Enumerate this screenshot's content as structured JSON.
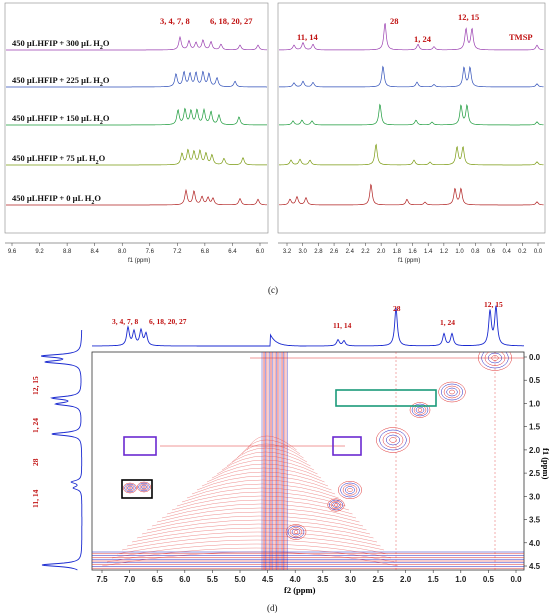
{
  "panel_c": {
    "caption": "(c)",
    "traces": [
      {
        "main": "450 μLHFIP + 300 μL H",
        "sub": "2",
        "tail": "O",
        "color": "#9a3fb0"
      },
      {
        "main": "450 μLHFIP + 225 μL H",
        "sub": "2",
        "tail": "O",
        "color": "#2f4fb8"
      },
      {
        "main": "450 μLHFIP + 150 μL H",
        "sub": "2",
        "tail": "O",
        "color": "#1a9a3a"
      },
      {
        "main": "450 μLHFIP + 75 μL H",
        "sub": "2",
        "tail": "O",
        "color": "#7a9a10"
      },
      {
        "main": "450 μLHFIP + 0 μL H",
        "sub": "2",
        "tail": "O",
        "color": "#b02020"
      }
    ],
    "peak_labels_left": [
      "3, 4, 7, 8",
      "6, 18, 20, 27"
    ],
    "peak_labels_right": [
      "11, 14",
      "28",
      "1, 24",
      "12, 15",
      "TMSP"
    ],
    "left_ticks": [
      "9.6",
      "9.2",
      "8.8",
      "8.4",
      "8.0",
      "7.6",
      "7.2",
      "6.8",
      "6.4",
      "6.0"
    ],
    "right_ticks": [
      "3.2",
      "3.0",
      "2.8",
      "2.6",
      "2.4",
      "2.2",
      "2.0",
      "1.8",
      "1.6",
      "1.4",
      "1.2",
      "1.0",
      "0.8",
      "0.6",
      "0.4",
      "0.2",
      "0.0"
    ],
    "xlabel": "f1 (ppm)"
  },
  "panel_d": {
    "caption": "(d)",
    "top_labels": [
      "3, 4, 7, 8",
      "6, 18, 20, 27",
      "11, 14",
      "28",
      "1, 24",
      "12, 15"
    ],
    "side_labels": [
      "12, 15",
      "1, 24",
      "28",
      "11, 14"
    ],
    "x_ticks": [
      "7.5",
      "7.0",
      "6.5",
      "6.0",
      "5.5",
      "5.0",
      "4.5",
      "4.0",
      "3.5",
      "3.0",
      "2.5",
      "2.0",
      "1.5",
      "1.0",
      "0.5",
      "0.0"
    ],
    "y_ticks": [
      "0.0",
      "0.5",
      "1.0",
      "1.5",
      "2.0",
      "2.5",
      "3.0",
      "3.5",
      "4.0",
      "4.5"
    ],
    "xlabel": "f2 (ppm)",
    "ylabel": "f1 (ppm)",
    "box_colors": {
      "green": "#1a9a7a",
      "purple": "#6a2ad0",
      "black": "#000000"
    }
  }
}
